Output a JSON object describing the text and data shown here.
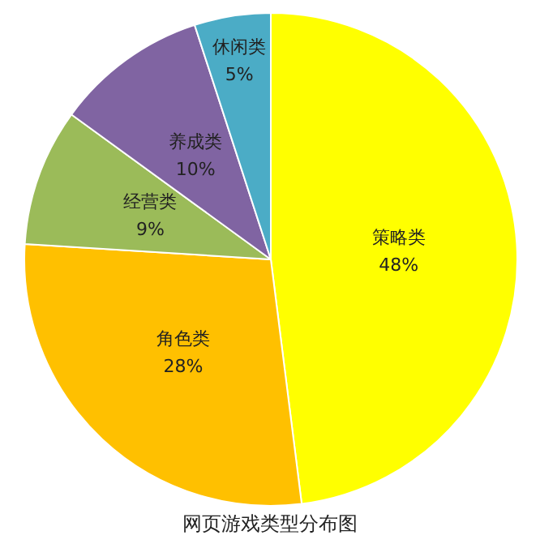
{
  "chart_data": {
    "type": "pie",
    "title": "网页游戏类型分布图",
    "categories": [
      "策略类",
      "角色类",
      "经营类",
      "养成类",
      "休闲类"
    ],
    "values": [
      48,
      28,
      9,
      10,
      5
    ],
    "colors": [
      "#ffff00",
      "#ffc000",
      "#9bbb59",
      "#8064a2",
      "#4bacc6"
    ],
    "value_labels": [
      "48%",
      "28%",
      "9%",
      "10%",
      "5%"
    ],
    "legend": false
  }
}
